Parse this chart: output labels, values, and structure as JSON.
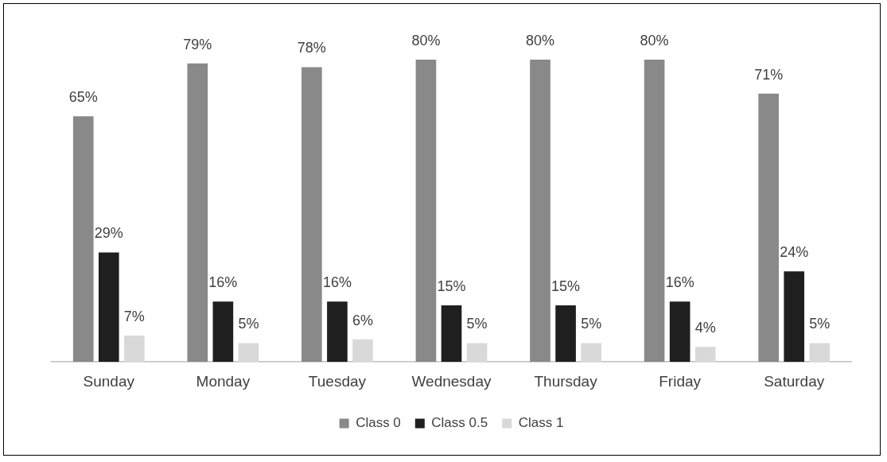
{
  "chart_data": {
    "type": "bar",
    "categories": [
      "Sunday",
      "Monday",
      "Tuesday",
      "Wednesday",
      "Thursday",
      "Friday",
      "Saturday"
    ],
    "legend": "bottom",
    "series": [
      {
        "name": "Class 0",
        "color": "#898989",
        "values": [
          65,
          79,
          78,
          80,
          80,
          80,
          71
        ],
        "value_labels": [
          "65%",
          "79%",
          "78%",
          "80%",
          "80%",
          "80%",
          "71%"
        ]
      },
      {
        "name": "Class 0.5",
        "color": "#1f1f1f",
        "values": [
          29,
          16,
          16,
          15,
          15,
          16,
          24
        ],
        "value_labels": [
          "29%",
          "16%",
          "16%",
          "15%",
          "15%",
          "16%",
          "24%"
        ]
      },
      {
        "name": "Class 1",
        "color": "#d9d9d9",
        "values": [
          7,
          5,
          6,
          5,
          5,
          4,
          5
        ],
        "value_labels": [
          "7%",
          "5%",
          "6%",
          "5%",
          "5%",
          "4%",
          "5%"
        ]
      }
    ]
  }
}
